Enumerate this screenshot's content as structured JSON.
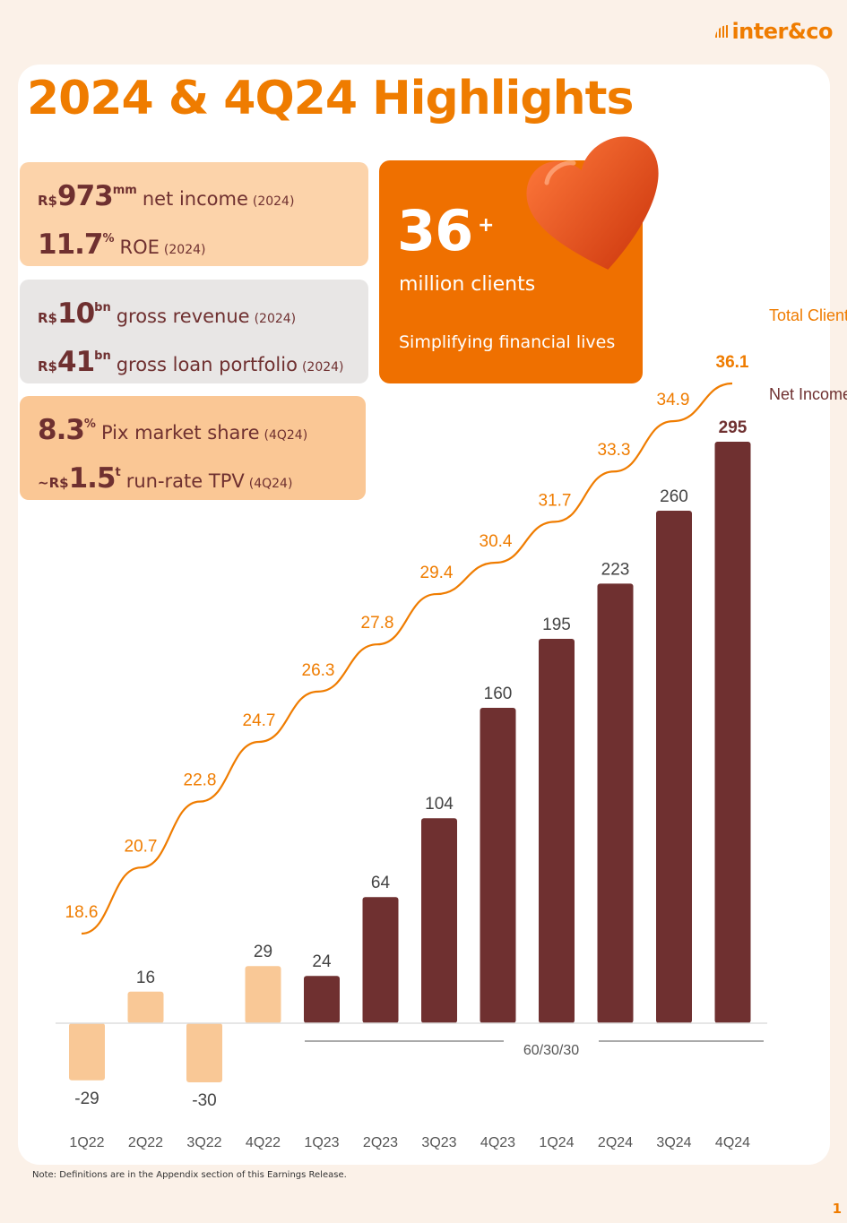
{
  "logo": {
    "text": "inter&co"
  },
  "title": "2024 & 4Q24 Highlights",
  "kpis": {
    "net_income": {
      "prefix": "R$",
      "value": "973",
      "sup": "mm",
      "label": "net income",
      "period": "(2024)"
    },
    "roe": {
      "prefix": "",
      "value": "11.7",
      "sup": "%",
      "label": "ROE",
      "period": "(2024)"
    },
    "gross_revenue": {
      "prefix": "R$",
      "value": "10",
      "sup": "bn",
      "label": "gross revenue",
      "period": "(2024)"
    },
    "gross_loan": {
      "prefix": "R$",
      "value": "41",
      "sup": "bn",
      "label": "gross loan portfolio",
      "period": "(2024)"
    },
    "pix_share": {
      "prefix": "",
      "value": "8.3",
      "sup": "%",
      "label": "Pix market share",
      "period": "(4Q24)"
    },
    "tpv": {
      "prefix": "~R$",
      "value": "1.5",
      "sup": "t",
      "label": "run-rate TPV",
      "period": "(4Q24)"
    }
  },
  "clients_card": {
    "number": "36",
    "plus": "+",
    "label": "million clients",
    "tagline": "Simplifying financial lives"
  },
  "icons": {
    "heart": "heart-icon",
    "logo": "inter-logo-icon"
  },
  "colors": {
    "brand_orange": "#ef7c00",
    "net_income_bar": "#6f3030",
    "negative_bar": "#f9c896",
    "clients_line": "#ef7c00"
  },
  "chart_data": {
    "type": "bar",
    "categories": [
      "1Q22",
      "2Q22",
      "3Q22",
      "4Q22",
      "1Q23",
      "2Q23",
      "3Q23",
      "4Q23",
      "1Q24",
      "2Q24",
      "3Q24",
      "4Q24"
    ],
    "series": [
      {
        "name": "Net Income",
        "type": "bar",
        "values": [
          -29,
          16,
          -30,
          29,
          24,
          64,
          104,
          160,
          195,
          223,
          260,
          295
        ]
      },
      {
        "name": "Total Clients",
        "type": "line",
        "values": [
          18.6,
          20.7,
          22.8,
          24.7,
          26.3,
          27.8,
          29.4,
          30.4,
          31.7,
          33.3,
          34.9,
          36.1
        ]
      }
    ],
    "legend": [
      "Total Clients",
      "Net Income"
    ],
    "annotation": "60/30/30",
    "grid": false
  },
  "footer": {
    "note": "Note: Definitions are in the Appendix section of this Earnings Release.",
    "page": "1"
  }
}
